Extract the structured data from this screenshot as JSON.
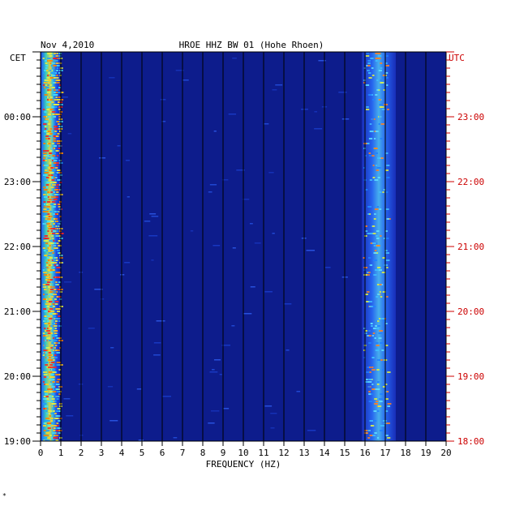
{
  "chart_data": {
    "type": "heatmap",
    "date": "Nov 4,2010",
    "title": "HROE HHZ BW 01 (Hohe Rhoen)",
    "xlabel": "FREQUENCY (HZ)",
    "left_axis_label": "CET",
    "right_axis_label": "UTC",
    "xlim": [
      0,
      20
    ],
    "x_ticks": [
      0,
      1,
      2,
      3,
      4,
      5,
      6,
      7,
      8,
      9,
      10,
      11,
      12,
      13,
      14,
      15,
      16,
      17,
      18,
      19,
      20
    ],
    "y_ticks_cet": [
      "00:00",
      "23:00",
      "22:00",
      "21:00",
      "20:00",
      "19:00"
    ],
    "y_ticks_utc": [
      "23:00",
      "22:00",
      "21:00",
      "20:00",
      "19:00",
      "18:00"
    ],
    "time_range_cet": [
      "19:00",
      "01:00"
    ],
    "energy_bands_hz": [
      {
        "from": 0.1,
        "to": 1.0,
        "level": "high"
      },
      {
        "from": 15.8,
        "to": 17.2,
        "level": "medium"
      }
    ],
    "colors": {
      "background": "#0d1c8c",
      "left_axis": "#000000",
      "right_axis": "#cc0000"
    }
  },
  "corner_mark": "*"
}
